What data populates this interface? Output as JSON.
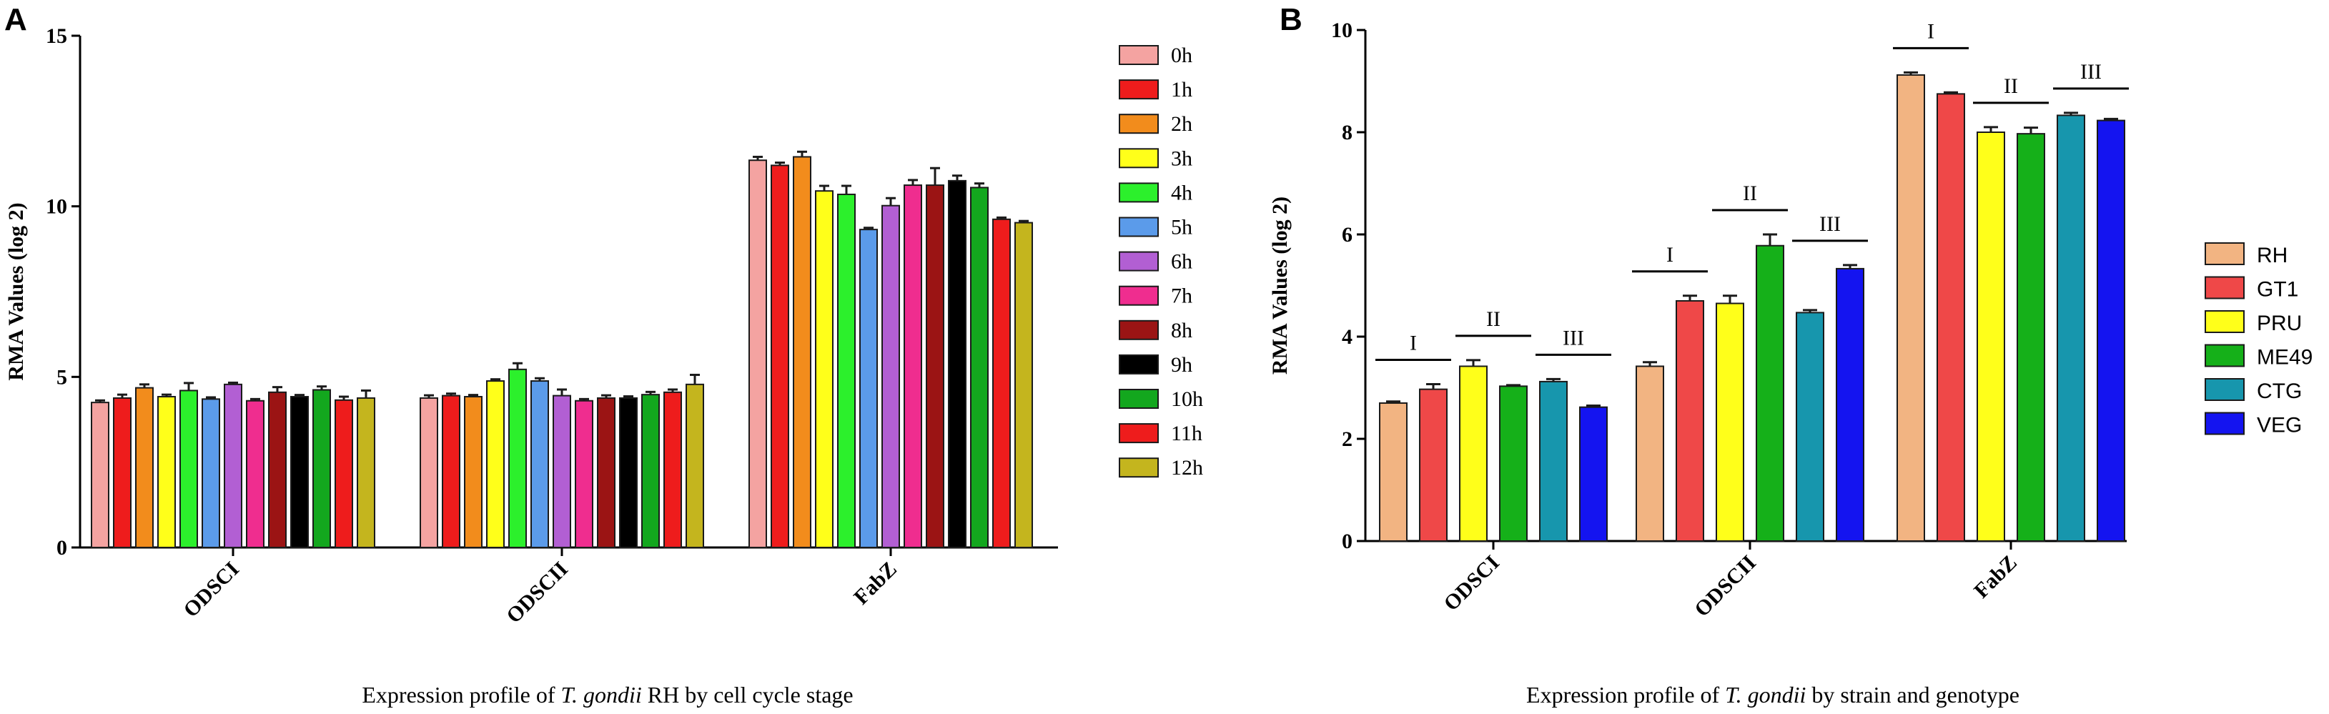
{
  "panel_labels": {
    "a": "A",
    "b": "B"
  },
  "captions": {
    "a": {
      "pre": "Expression profile of ",
      "italic": "T. gondii",
      "post": " RH by cell cycle stage"
    },
    "b": {
      "pre": "Expression profile of ",
      "italic": "T. gondii",
      "post": " by strain and genotype"
    }
  },
  "chart_data": [
    {
      "type": "bar",
      "title": "",
      "ylabel": "RMA  Values (log 2)",
      "xlabel": "",
      "ylim": [
        0,
        15
      ],
      "yticks": [
        0,
        5,
        10,
        15
      ],
      "categories": [
        "ODSCI",
        "ODSCII",
        "FabZ"
      ],
      "error_bars": true,
      "legend_position": "right",
      "series": [
        {
          "name": "0h",
          "color": "#f4a3a1",
          "values": [
            4.25,
            4.38,
            11.35
          ],
          "errors": [
            0.06,
            0.08,
            0.1
          ]
        },
        {
          "name": "1h",
          "color": "#ee1c1c",
          "values": [
            4.38,
            4.45,
            11.2
          ],
          "errors": [
            0.1,
            0.06,
            0.08
          ]
        },
        {
          "name": "2h",
          "color": "#f28c1c",
          "values": [
            4.68,
            4.42,
            11.45
          ],
          "errors": [
            0.1,
            0.05,
            0.15
          ]
        },
        {
          "name": "3h",
          "color": "#ffff1a",
          "values": [
            4.42,
            4.88,
            10.45
          ],
          "errors": [
            0.06,
            0.05,
            0.15
          ]
        },
        {
          "name": "4h",
          "color": "#2cf02c",
          "values": [
            4.6,
            5.22,
            10.35
          ],
          "errors": [
            0.22,
            0.18,
            0.25
          ]
        },
        {
          "name": "5h",
          "color": "#5b9bea",
          "values": [
            4.35,
            4.88,
            9.32
          ],
          "errors": [
            0.05,
            0.08,
            0.05
          ]
        },
        {
          "name": "6h",
          "color": "#b25fd3",
          "values": [
            4.78,
            4.45,
            10.02
          ],
          "errors": [
            0.05,
            0.18,
            0.22
          ]
        },
        {
          "name": "7h",
          "color": "#ef2d8f",
          "values": [
            4.3,
            4.3,
            10.62
          ],
          "errors": [
            0.05,
            0.05,
            0.15
          ]
        },
        {
          "name": "8h",
          "color": "#9b1414",
          "values": [
            4.55,
            4.38,
            10.62
          ],
          "errors": [
            0.15,
            0.08,
            0.5
          ]
        },
        {
          "name": "9h",
          "color": "#000000",
          "values": [
            4.42,
            4.38,
            10.75
          ],
          "errors": [
            0.05,
            0.05,
            0.15
          ]
        },
        {
          "name": "10h",
          "color": "#13a71e",
          "values": [
            4.62,
            4.48,
            10.55
          ],
          "errors": [
            0.1,
            0.08,
            0.12
          ]
        },
        {
          "name": "11h",
          "color": "#ee1c1c",
          "values": [
            4.32,
            4.55,
            9.62
          ],
          "errors": [
            0.1,
            0.08,
            0.05
          ]
        },
        {
          "name": "12h",
          "color": "#c4b51e",
          "values": [
            4.38,
            4.78,
            9.52
          ],
          "errors": [
            0.22,
            0.28,
            0.05
          ]
        }
      ]
    },
    {
      "type": "bar",
      "title": "",
      "ylabel": "RMA  Values (log 2)",
      "xlabel": "",
      "ylim": [
        0,
        10
      ],
      "yticks": [
        0,
        2,
        4,
        6,
        8,
        10
      ],
      "categories": [
        "ODSCI",
        "ODSCII",
        "FabZ"
      ],
      "error_bars": true,
      "legend_position": "right",
      "series": [
        {
          "name": "RH",
          "color": "#f2b482",
          "values": [
            2.7,
            3.42,
            9.12
          ],
          "errors": [
            0.03,
            0.08,
            0.05
          ]
        },
        {
          "name": "GT1",
          "color": "#ef4848",
          "values": [
            2.97,
            4.7,
            8.75
          ],
          "errors": [
            0.1,
            0.1,
            0.03
          ]
        },
        {
          "name": "PRU",
          "color": "#ffff1a",
          "values": [
            3.42,
            4.65,
            8.0
          ],
          "errors": [
            0.12,
            0.15,
            0.1
          ]
        },
        {
          "name": "ME49",
          "color": "#15b019",
          "values": [
            3.03,
            5.78,
            7.97
          ],
          "errors": [
            0.02,
            0.22,
            0.12
          ]
        },
        {
          "name": "CTG",
          "color": "#1796ad",
          "values": [
            3.12,
            4.47,
            8.33
          ],
          "errors": [
            0.05,
            0.05,
            0.05
          ]
        },
        {
          "name": "VEG",
          "color": "#1414f0",
          "values": [
            2.62,
            5.33,
            8.23
          ],
          "errors": [
            0.03,
            0.07,
            0.03
          ]
        }
      ],
      "annotations": [
        {
          "label": "I",
          "category": "ODSCI",
          "pair": [
            0,
            1
          ]
        },
        {
          "label": "II",
          "category": "ODSCI",
          "pair": [
            2,
            3
          ]
        },
        {
          "label": "III",
          "category": "ODSCI",
          "pair": [
            4,
            5
          ]
        },
        {
          "label": "I",
          "category": "ODSCII",
          "pair": [
            0,
            1
          ]
        },
        {
          "label": "II",
          "category": "ODSCII",
          "pair": [
            2,
            3
          ]
        },
        {
          "label": "III",
          "category": "ODSCII",
          "pair": [
            4,
            5
          ]
        },
        {
          "label": "I",
          "category": "FabZ",
          "pair": [
            0,
            1
          ]
        },
        {
          "label": "II",
          "category": "FabZ",
          "pair": [
            2,
            3
          ]
        },
        {
          "label": "III",
          "category": "FabZ",
          "pair": [
            4,
            5
          ]
        }
      ]
    }
  ]
}
